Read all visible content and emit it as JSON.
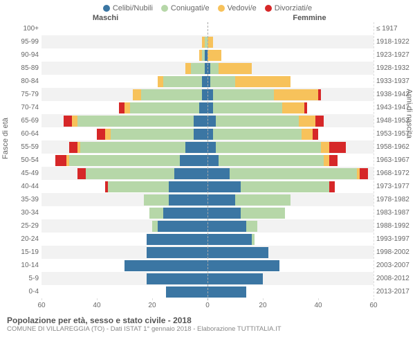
{
  "legend": [
    {
      "label": "Celibi/Nubili",
      "color": "#3b76a3"
    },
    {
      "label": "Coniugati/e",
      "color": "#b6d7a8"
    },
    {
      "label": "Vedovi/e",
      "color": "#f7c25b"
    },
    {
      "label": "Divorziati/e",
      "color": "#d62728"
    }
  ],
  "gender_labels": {
    "male": "Maschi",
    "female": "Femmine"
  },
  "y_axis_title_left": "Fasce di età",
  "y_axis_title_right": "Anni di nascita",
  "x_axis": {
    "max": 60,
    "ticks": [
      60,
      40,
      20,
      0,
      20,
      40,
      60
    ]
  },
  "row_bg_colors": [
    "#ffffff",
    "#f2f2f2"
  ],
  "age_groups": [
    {
      "age": "100+",
      "birth": "≤ 1917",
      "m": {
        "c": 0,
        "co": 0,
        "v": 0,
        "d": 0
      },
      "f": {
        "c": 0,
        "co": 0,
        "v": 0,
        "d": 0
      }
    },
    {
      "age": "95-99",
      "birth": "1918-1922",
      "m": {
        "c": 0,
        "co": 1,
        "v": 1,
        "d": 0
      },
      "f": {
        "c": 0,
        "co": 0,
        "v": 2,
        "d": 0
      }
    },
    {
      "age": "90-94",
      "birth": "1923-1927",
      "m": {
        "c": 1,
        "co": 1,
        "v": 1,
        "d": 0
      },
      "f": {
        "c": 0,
        "co": 0,
        "v": 5,
        "d": 0
      }
    },
    {
      "age": "85-89",
      "birth": "1928-1932",
      "m": {
        "c": 1,
        "co": 5,
        "v": 2,
        "d": 0
      },
      "f": {
        "c": 1,
        "co": 3,
        "v": 12,
        "d": 0
      }
    },
    {
      "age": "80-84",
      "birth": "1933-1937",
      "m": {
        "c": 2,
        "co": 14,
        "v": 2,
        "d": 0
      },
      "f": {
        "c": 1,
        "co": 9,
        "v": 20,
        "d": 0
      }
    },
    {
      "age": "75-79",
      "birth": "1938-1942",
      "m": {
        "c": 2,
        "co": 22,
        "v": 3,
        "d": 0
      },
      "f": {
        "c": 2,
        "co": 22,
        "v": 16,
        "d": 1
      }
    },
    {
      "age": "70-74",
      "birth": "1943-1947",
      "m": {
        "c": 3,
        "co": 25,
        "v": 2,
        "d": 2
      },
      "f": {
        "c": 2,
        "co": 25,
        "v": 8,
        "d": 1
      }
    },
    {
      "age": "65-69",
      "birth": "1948-1952",
      "m": {
        "c": 5,
        "co": 42,
        "v": 2,
        "d": 3
      },
      "f": {
        "c": 3,
        "co": 30,
        "v": 6,
        "d": 3
      }
    },
    {
      "age": "60-64",
      "birth": "1953-1957",
      "m": {
        "c": 5,
        "co": 30,
        "v": 2,
        "d": 3
      },
      "f": {
        "c": 2,
        "co": 32,
        "v": 4,
        "d": 2
      }
    },
    {
      "age": "55-59",
      "birth": "1958-1962",
      "m": {
        "c": 8,
        "co": 38,
        "v": 1,
        "d": 3
      },
      "f": {
        "c": 3,
        "co": 38,
        "v": 3,
        "d": 6
      }
    },
    {
      "age": "50-54",
      "birth": "1963-1967",
      "m": {
        "c": 10,
        "co": 40,
        "v": 1,
        "d": 4
      },
      "f": {
        "c": 4,
        "co": 38,
        "v": 2,
        "d": 3
      }
    },
    {
      "age": "45-49",
      "birth": "1968-1972",
      "m": {
        "c": 12,
        "co": 32,
        "v": 0,
        "d": 3
      },
      "f": {
        "c": 8,
        "co": 46,
        "v": 1,
        "d": 3
      }
    },
    {
      "age": "40-44",
      "birth": "1973-1977",
      "m": {
        "c": 14,
        "co": 22,
        "v": 0,
        "d": 1
      },
      "f": {
        "c": 12,
        "co": 32,
        "v": 0,
        "d": 2
      }
    },
    {
      "age": "35-39",
      "birth": "1978-1982",
      "m": {
        "c": 14,
        "co": 9,
        "v": 0,
        "d": 0
      },
      "f": {
        "c": 10,
        "co": 20,
        "v": 0,
        "d": 0
      }
    },
    {
      "age": "30-34",
      "birth": "1983-1987",
      "m": {
        "c": 16,
        "co": 5,
        "v": 0,
        "d": 0
      },
      "f": {
        "c": 12,
        "co": 16,
        "v": 0,
        "d": 0
      }
    },
    {
      "age": "25-29",
      "birth": "1988-1992",
      "m": {
        "c": 18,
        "co": 2,
        "v": 0,
        "d": 0
      },
      "f": {
        "c": 14,
        "co": 4,
        "v": 0,
        "d": 0
      }
    },
    {
      "age": "20-24",
      "birth": "1993-1997",
      "m": {
        "c": 22,
        "co": 0,
        "v": 0,
        "d": 0
      },
      "f": {
        "c": 16,
        "co": 1,
        "v": 0,
        "d": 0
      }
    },
    {
      "age": "15-19",
      "birth": "1998-2002",
      "m": {
        "c": 22,
        "co": 0,
        "v": 0,
        "d": 0
      },
      "f": {
        "c": 22,
        "co": 0,
        "v": 0,
        "d": 0
      }
    },
    {
      "age": "10-14",
      "birth": "2003-2007",
      "m": {
        "c": 30,
        "co": 0,
        "v": 0,
        "d": 0
      },
      "f": {
        "c": 26,
        "co": 0,
        "v": 0,
        "d": 0
      }
    },
    {
      "age": "5-9",
      "birth": "2008-2012",
      "m": {
        "c": 22,
        "co": 0,
        "v": 0,
        "d": 0
      },
      "f": {
        "c": 20,
        "co": 0,
        "v": 0,
        "d": 0
      }
    },
    {
      "age": "0-4",
      "birth": "2013-2017",
      "m": {
        "c": 15,
        "co": 0,
        "v": 0,
        "d": 0
      },
      "f": {
        "c": 14,
        "co": 0,
        "v": 0,
        "d": 0
      }
    }
  ],
  "footer": {
    "title": "Popolazione per età, sesso e stato civile - 2018",
    "subtitle": "COMUNE DI VILLAREGGIA (TO) - Dati ISTAT 1° gennaio 2018 - Elaborazione TUTTITALIA.IT"
  },
  "colors": {
    "celibi": "#3b76a3",
    "coniugati": "#b6d7a8",
    "vedovi": "#f7c25b",
    "divorziati": "#d62728",
    "grid": "#dddddd",
    "center": "#aaaaaa",
    "text": "#666666"
  }
}
